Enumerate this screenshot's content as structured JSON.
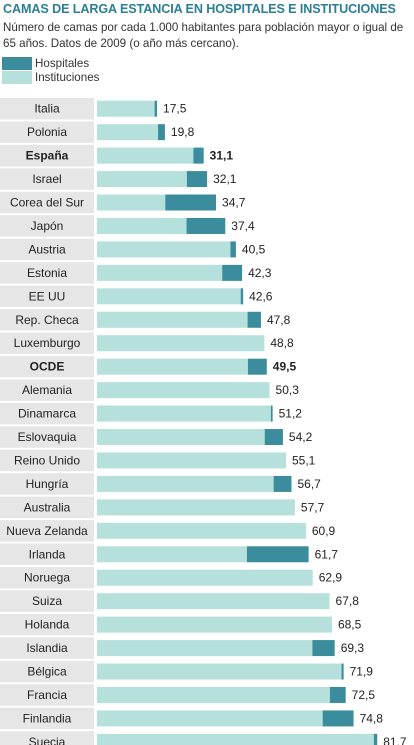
{
  "title": "CAMAS DE LARGA ESTANCIA EN HOSPITALES E INSTITUCIONES",
  "subtitle": "Número de camas por cada 1.000 habitantes para población mayor o igual de 65 años. Datos de 2009 (o año más cercano).",
  "colors": {
    "hospitales": "#3b8c9c",
    "instituciones": "#b5e0dc",
    "row_gray": "#e6e6e6",
    "title": "#2a7f95"
  },
  "chart_data": {
    "type": "bar",
    "orientation": "horizontal",
    "stacked": true,
    "title": "CAMAS DE LARGA ESTANCIA EN HOSPITALES E INSTITUCIONES",
    "legend": [
      "Hospitales",
      "Instituciones"
    ],
    "legend_position": "top-left",
    "categories": [
      "Italia",
      "Polonia",
      "España",
      "Israel",
      "Corea del Sur",
      "Japón",
      "Austria",
      "Estonia",
      "EE UU",
      "Rep. Checa",
      "Luxemburgo",
      "OCDE",
      "Alemania",
      "Dinamarca",
      "Eslovaquia",
      "Reino Unido",
      "Hungría",
      "Australia",
      "Nueva Zelanda",
      "Irlanda",
      "Noruega",
      "Suiza",
      "Holanda",
      "Islandia",
      "Bélgica",
      "Francia",
      "Finlandia",
      "Suecia"
    ],
    "totals": [
      "17,5",
      "19,8",
      "31,1",
      "32,1",
      "34,7",
      "37,4",
      "40,5",
      "42,3",
      "42,6",
      "47,8",
      "48,8",
      "49,5",
      "50,3",
      "51,2",
      "54,2",
      "55,1",
      "56,7",
      "57,7",
      "60,9",
      "61,7",
      "62,9",
      "67,8",
      "68,5",
      "69,3",
      "71,9",
      "72,5",
      "74,8",
      "81,7"
    ],
    "bold_categories": [
      "España",
      "OCDE"
    ],
    "series": [
      {
        "name": "Instituciones",
        "values": [
          16.8,
          17.8,
          28.1,
          26.2,
          19.9,
          26.1,
          38.9,
          36.5,
          41.9,
          43.9,
          48.8,
          44.0,
          50.3,
          50.7,
          48.9,
          55.1,
          51.5,
          57.7,
          60.9,
          43.7,
          62.9,
          67.8,
          68.5,
          62.8,
          71.3,
          67.9,
          65.8,
          80.7
        ]
      },
      {
        "name": "Hospitales",
        "values": [
          0.7,
          2.0,
          3.0,
          5.9,
          14.8,
          11.3,
          1.6,
          5.8,
          0.7,
          3.9,
          0.0,
          5.5,
          0.0,
          0.5,
          5.3,
          0.0,
          5.2,
          0.0,
          0.0,
          18.0,
          0.0,
          0.0,
          0.0,
          6.5,
          0.6,
          4.6,
          9.0,
          1.0
        ]
      }
    ],
    "xlim": [
      0,
      100
    ]
  }
}
